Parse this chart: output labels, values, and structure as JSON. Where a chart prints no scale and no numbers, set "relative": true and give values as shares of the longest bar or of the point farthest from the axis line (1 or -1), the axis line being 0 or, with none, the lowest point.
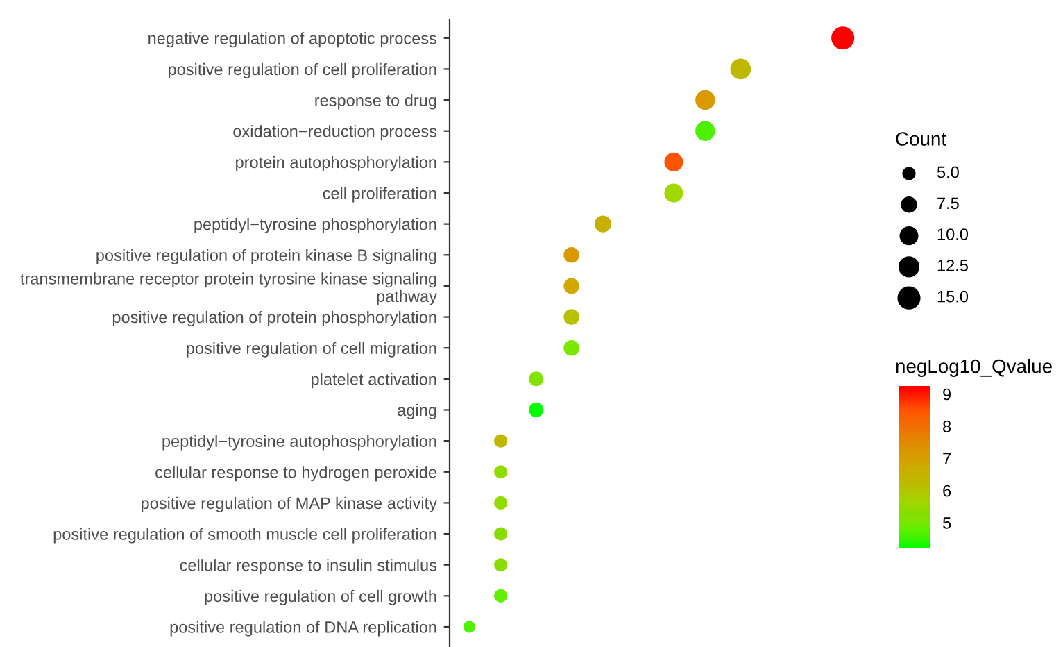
{
  "chart_data": {
    "type": "bubble",
    "orientation": "horizontal",
    "relative": true,
    "categories": [
      "negative regulation of apoptotic process",
      "positive regulation of cell proliferation",
      "response to drug",
      "oxidation−reduction process",
      "protein autophosphorylation",
      "cell proliferation",
      "peptidyl−tyrosine phosphorylation",
      "positive regulation of protein kinase B signaling",
      "transmembrane receptor protein tyrosine kinase signaling\npathway",
      "positive regulation of protein phosphorylation",
      "positive regulation of cell migration",
      "platelet activation",
      "aging",
      "peptidyl−tyrosine autophosphorylation",
      "cellular response to hydrogen peroxide",
      "positive regulation of MAP kinase activity",
      "positive regulation of smooth muscle cell proliferation",
      "cellular response to insulin stimulus",
      "positive regulation of cell growth",
      "positive regulation of DNA replication"
    ],
    "series": [
      {
        "values": [
          1,
          0.74,
          0.65,
          0.65,
          0.57,
          0.57,
          0.39,
          0.31,
          0.31,
          0.31,
          0.31,
          0.22,
          0.22,
          0.13,
          0.13,
          0.13,
          0.13,
          0.13,
          0.13,
          0.05
        ],
        "sizes": [
          15,
          12,
          11,
          11,
          10,
          10,
          8,
          7,
          7,
          7,
          7,
          6,
          6,
          5,
          5,
          5,
          5,
          5,
          5,
          4
        ],
        "cvalues": [
          9.2,
          6.3,
          7.2,
          4.6,
          8.5,
          5.6,
          6.6,
          7.1,
          6.8,
          6.1,
          5.0,
          5.1,
          4.2,
          6.3,
          5.4,
          5.4,
          5.3,
          5.3,
          4.8,
          4.6
        ],
        "colors": [
          "#ff0000",
          "#c0b800",
          "#d89a00",
          "#4cf000",
          "#ff5500",
          "#a0d800",
          "#c8b000",
          "#d89a00",
          "#d0a800",
          "#b8c000",
          "#78e800",
          "#80e400",
          "#00ff00",
          "#c0b800",
          "#90dc00",
          "#90dc00",
          "#88dc00",
          "#88dc00",
          "#60f000",
          "#50f000"
        ]
      }
    ],
    "size_legend": [
      {
        "value": 5,
        "label": "5.0"
      },
      7.5,
      {
        "value": 10,
        "label": "10.0"
      },
      12.5,
      {
        "value": 15,
        "label": "15.0"
      }
    ],
    "legend_title": "Count",
    "clabel": "negLog10_Qvalue",
    "clim": [
      4.2,
      9.25
    ],
    "cticks": [
      5,
      6,
      7,
      8,
      9
    ]
  }
}
